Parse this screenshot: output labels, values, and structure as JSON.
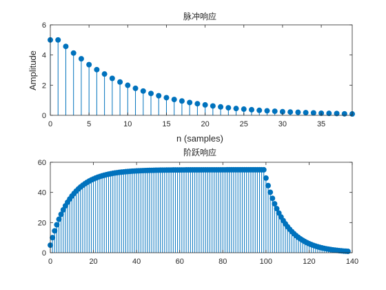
{
  "chart_data": [
    {
      "type": "stem",
      "title": "脉冲响应",
      "xlabel": "n (samples)",
      "ylabel": "Amplitude",
      "xlim": [
        0,
        39
      ],
      "ylim": [
        0,
        6
      ],
      "xticks": [
        0,
        5,
        10,
        15,
        20,
        25,
        30,
        35
      ],
      "yticks": [
        0,
        2,
        4,
        6
      ],
      "grid": false,
      "series": [
        {
          "color": "#0072bd",
          "x": [
            0,
            1,
            2,
            3,
            4,
            5,
            6,
            7,
            8,
            9,
            10,
            11,
            12,
            13,
            14,
            15,
            16,
            17,
            18,
            19,
            20,
            21,
            22,
            23,
            24,
            25,
            26,
            27,
            28,
            29,
            30,
            31,
            32,
            33,
            34,
            35,
            36,
            37,
            38,
            39
          ],
          "values": [
            5.0,
            5.0,
            4.57,
            4.13,
            3.75,
            3.36,
            3.03,
            2.74,
            2.45,
            2.21,
            1.99,
            1.79,
            1.61,
            1.45,
            1.3,
            1.17,
            1.05,
            0.95,
            0.85,
            0.77,
            0.69,
            0.62,
            0.56,
            0.5,
            0.45,
            0.41,
            0.37,
            0.33,
            0.3,
            0.27,
            0.24,
            0.22,
            0.2,
            0.18,
            0.16,
            0.14,
            0.13,
            0.12,
            0.1,
            0.09
          ]
        }
      ]
    },
    {
      "type": "stem",
      "title": "阶跃响应",
      "xlabel": "",
      "ylabel": "",
      "xlim": [
        0,
        140
      ],
      "ylim": [
        0,
        60
      ],
      "xticks": [
        0,
        20,
        40,
        60,
        80,
        100,
        120,
        140
      ],
      "yticks": [
        0,
        20,
        40,
        60
      ],
      "grid": false,
      "series": [
        {
          "color": "#0072bd",
          "x_start": 0,
          "x_end": 138,
          "rise": {
            "start_value": 5.0,
            "steady_value": 55.0,
            "decay_ratio": 0.9,
            "end_index": 99
          },
          "fall": {
            "ratio": 0.9,
            "start_index": 100,
            "end_index": 138
          }
        }
      ]
    }
  ]
}
